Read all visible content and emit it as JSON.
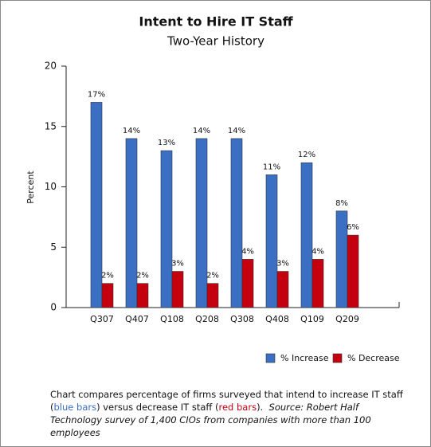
{
  "chart_data": {
    "type": "bar",
    "title": "Intent to Hire IT Staff",
    "subtitle": "Two-Year History",
    "y_label": "Percent",
    "categories": [
      "Q307",
      "Q407",
      "Q108",
      "Q208",
      "Q308",
      "Q408",
      "Q109",
      "Q209"
    ],
    "series": [
      {
        "name": "% Increase",
        "color": "#3a6fc4",
        "values": [
          17,
          14,
          13,
          14,
          14,
          11,
          12,
          8
        ],
        "value_labels": [
          "17%",
          "14%",
          "13%",
          "14%",
          "14%",
          "11%",
          "12%",
          "8%"
        ]
      },
      {
        "name": "% Decrease",
        "color": "#c4000e",
        "values": [
          2,
          2,
          3,
          2,
          4,
          3,
          4,
          6
        ],
        "value_labels": [
          "2%",
          "2%",
          "3%",
          "2%",
          "4%",
          "3%",
          "4%",
          "6%"
        ]
      }
    ],
    "ylim": [
      0,
      20
    ],
    "yticks": [
      0,
      5,
      10,
      15,
      20
    ],
    "grid": false,
    "caption": [
      "Chart compares percentage of firms surveyed that intend to increase IT staff (",
      "blue bars",
      ") versus decrease IT staff (",
      "red bars",
      ").",
      "Source: Robert Half Technology survey of 1,400 CIOs from companies with more than 100 employees"
    ]
  }
}
